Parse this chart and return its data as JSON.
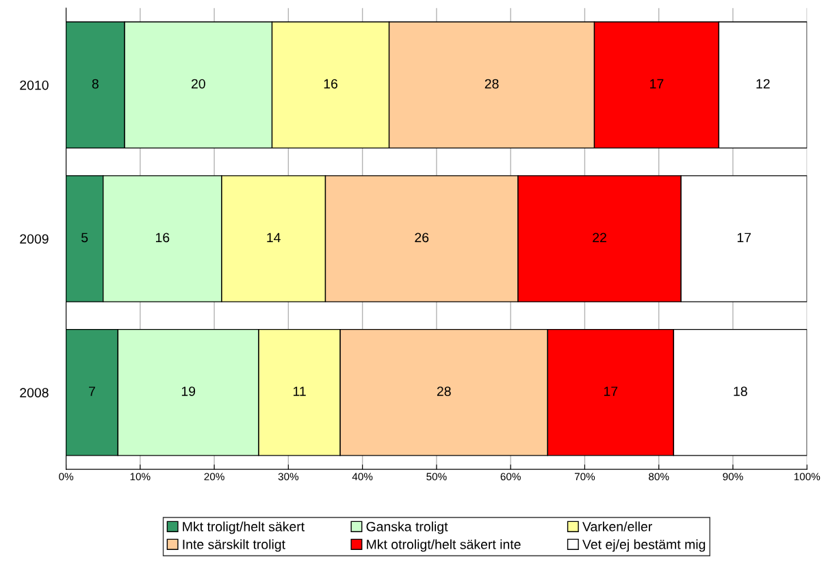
{
  "chart_data": {
    "type": "bar",
    "orientation": "horizontal",
    "stacked": true,
    "categories": [
      "2010",
      "2009",
      "2008"
    ],
    "series": [
      {
        "name": "Mkt troligt/helt säkert",
        "color": "#339966",
        "values": [
          7.9,
          5,
          7
        ],
        "value_labels": [
          "8",
          "5",
          "7"
        ]
      },
      {
        "name": "Ganska troligt",
        "color": "#ccffcc",
        "values": [
          19.9,
          16,
          19
        ],
        "value_labels": [
          "20",
          "16",
          "19"
        ]
      },
      {
        "name": "Varken/eller",
        "color": "#ffff99",
        "values": [
          15.8,
          14,
          11
        ],
        "value_labels": [
          "16",
          "14",
          "11"
        ]
      },
      {
        "name": "Inte särskilt troligt",
        "color": "#ffcc99",
        "values": [
          27.7,
          26,
          28
        ],
        "value_labels": [
          "28",
          "26",
          "28"
        ]
      },
      {
        "name": "Mkt otroligt/helt säkert inte",
        "color": "#ff0000",
        "values": [
          16.8,
          22,
          17
        ],
        "value_labels": [
          "17",
          "22",
          "17"
        ]
      },
      {
        "name": "Vet ej/ej bestämt mig",
        "color": "#ffffff",
        "values": [
          11.9,
          17,
          18
        ],
        "value_labels": [
          "12",
          "17",
          "18"
        ]
      }
    ],
    "xlim": [
      0,
      100
    ],
    "xticks": [
      {
        "value": 0,
        "label": "0%"
      },
      {
        "value": 10,
        "label": "10%"
      },
      {
        "value": 20,
        "label": "20%"
      },
      {
        "value": 30,
        "label": "30%"
      },
      {
        "value": 40,
        "label": "40%"
      },
      {
        "value": 50,
        "label": "50%"
      },
      {
        "value": 60,
        "label": "60%"
      },
      {
        "value": 70,
        "label": "70%"
      },
      {
        "value": 80,
        "label": "80%"
      },
      {
        "value": 90,
        "label": "90%"
      },
      {
        "value": 100,
        "label": "100%"
      }
    ],
    "grid": "x",
    "legend": "bottom"
  }
}
